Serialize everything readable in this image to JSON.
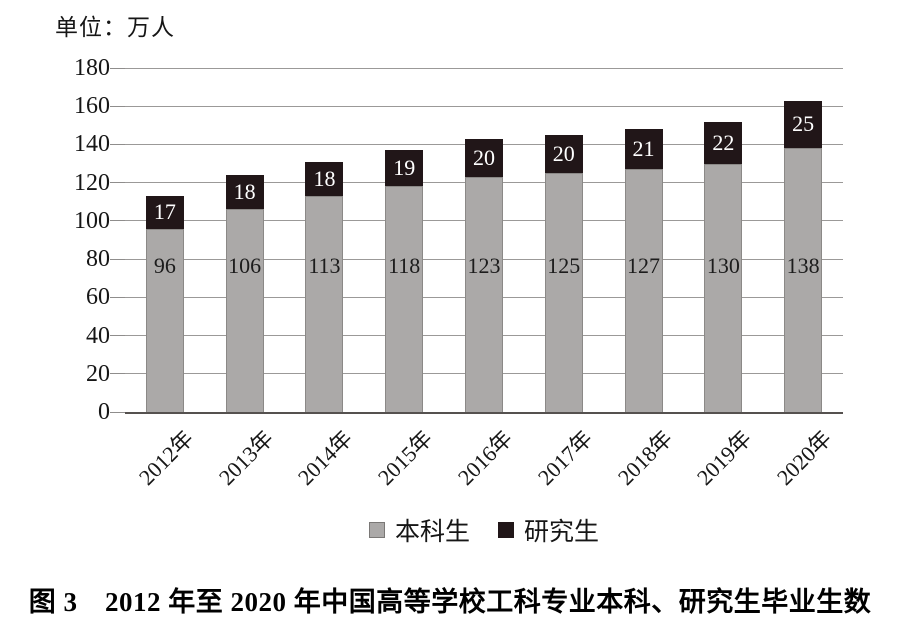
{
  "unit_label": "单位：万人",
  "caption": "图 3　2012 年至 2020 年中国高等学校工科专业本科、研究生毕业生数",
  "chart_data": {
    "type": "bar",
    "stacked": true,
    "categories": [
      "2012年",
      "2013年",
      "2014年",
      "2015年",
      "2016年",
      "2017年",
      "2018年",
      "2019年",
      "2020年"
    ],
    "series": [
      {
        "name": "本科生",
        "color": "#aba9a8",
        "values": [
          96,
          106,
          113,
          118,
          123,
          125,
          127,
          130,
          138
        ]
      },
      {
        "name": "研究生",
        "color": "#211618",
        "values": [
          17,
          18,
          18,
          19,
          20,
          20,
          21,
          22,
          25
        ]
      }
    ],
    "ylabel": "单位：万人",
    "ylim": [
      0,
      180
    ],
    "ytick_interval": 20,
    "grid": true,
    "legend_position": "bottom"
  },
  "legend": {
    "items": [
      {
        "label": "本科生",
        "color": "#aba9a8",
        "border": "#7a7876"
      },
      {
        "label": "研究生",
        "color": "#211618",
        "border": "#211618"
      }
    ]
  },
  "colors": {
    "grid": "#9b9998",
    "axis": "#55514f",
    "undergrad_fill": "#aba9a8",
    "grad_fill": "#211618",
    "grad_label_text": "#ffffff",
    "bar_label_text": "#1c1c1c"
  }
}
